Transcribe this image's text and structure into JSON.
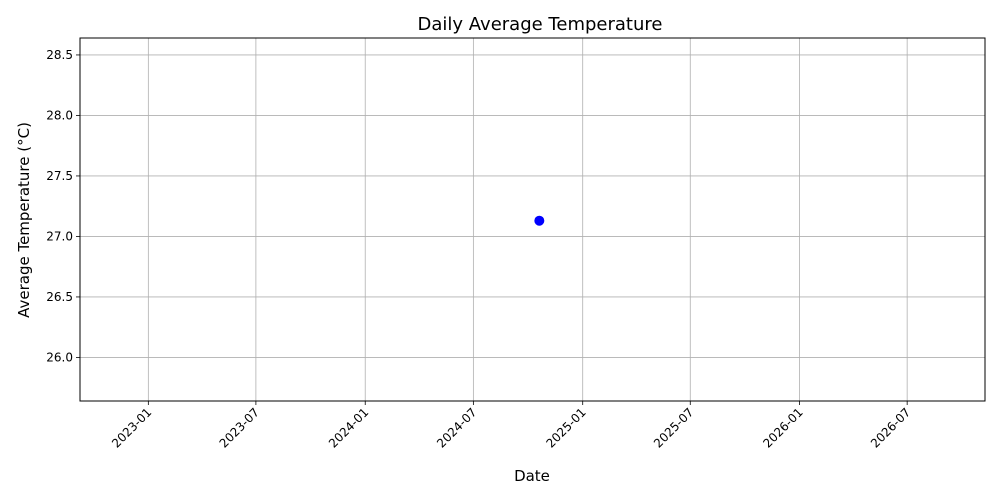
{
  "chart_data": {
    "type": "scatter",
    "title": "Daily Average Temperature",
    "xlabel": "Date",
    "ylabel": "Average Temperature (°C)",
    "x_type": "date",
    "xlim": [
      "2022-09-08",
      "2026-11-09"
    ],
    "ylim": [
      25.64,
      28.64
    ],
    "x_ticks": [
      "2023-01",
      "2023-07",
      "2024-01",
      "2024-07",
      "2025-01",
      "2025-07",
      "2026-01",
      "2026-07"
    ],
    "y_ticks": [
      "26.0",
      "26.5",
      "27.0",
      "27.5",
      "28.0",
      "28.5"
    ],
    "grid": true,
    "marker_color": "#0000ff",
    "points": [
      {
        "x": "2024-10-20",
        "y": 27.13
      }
    ]
  }
}
